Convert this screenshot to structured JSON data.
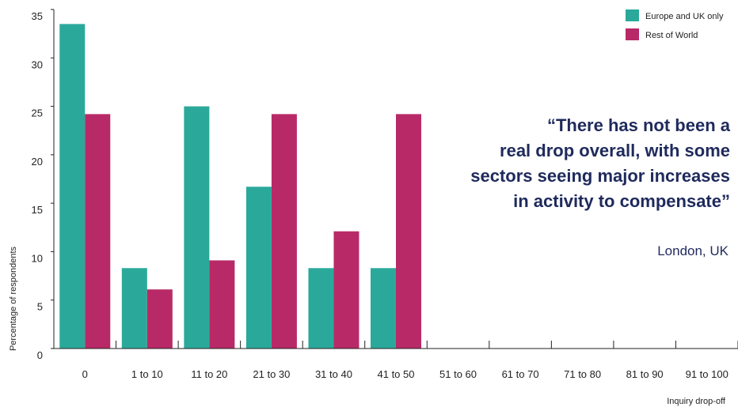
{
  "chart_data": {
    "type": "bar",
    "categories": [
      "0",
      "1 to 10",
      "11 to 20",
      "21 to 30",
      "31 to 40",
      "41 to 50",
      "51 to 60",
      "61 to 70",
      "71 to 80",
      "81 to 90",
      "91 to 100"
    ],
    "series": [
      {
        "name": "Europe and UK only",
        "color": "#2aa99b",
        "values": [
          33.5,
          8.3,
          25,
          16.7,
          8.3,
          8.3,
          0,
          0,
          0,
          0,
          0
        ]
      },
      {
        "name": "Rest of World",
        "color": "#b82a67",
        "values": [
          24.2,
          6.1,
          9.1,
          24.2,
          12.1,
          24.2,
          0,
          0,
          0,
          0,
          0
        ]
      }
    ],
    "yticks": [
      "0",
      "5",
      "10",
      "15",
      "20",
      "25",
      "30",
      "35"
    ],
    "ylim": [
      0,
      35
    ],
    "ylabel": "Percentage of respondents",
    "xlabel": "Inquiry drop-off",
    "legend": "top-right",
    "grid": false
  },
  "quote": {
    "lines": [
      "“There has not been a",
      "real drop overall, with some",
      "sectors seeing major increases",
      "in activity to compensate”"
    ],
    "attribution": "London, UK"
  }
}
